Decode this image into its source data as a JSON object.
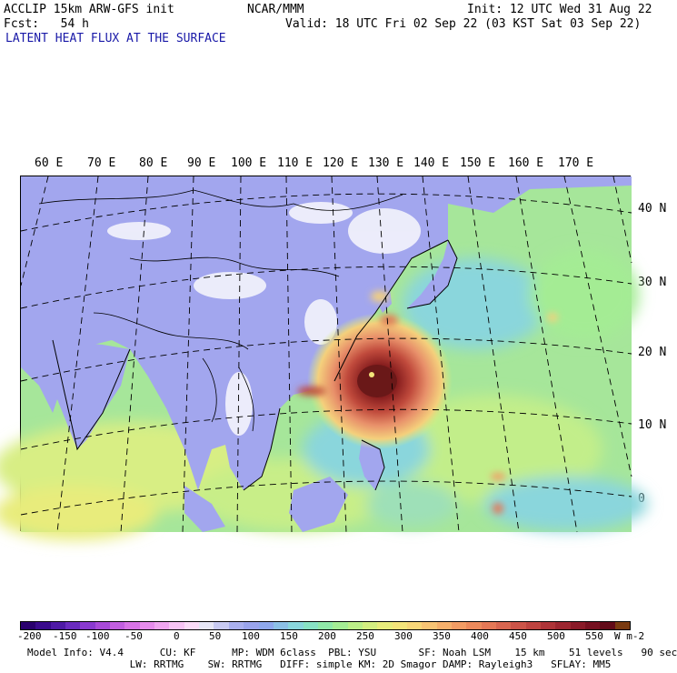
{
  "header": {
    "line1_left": "ACCLIP 15km ARW-GFS init",
    "line1_center": "NCAR/MMM",
    "line1_right": "Init: 12 UTC Wed 31 Aug 22",
    "line2_left": "Fcst:   54 h",
    "line2_right": "Valid: 18 UTC Fri 02 Sep 22 (03 KST Sat 03 Sep 22)",
    "field_title": "LATENT HEAT FLUX AT THE SURFACE",
    "field_title_color": "#1a1aa8"
  },
  "longitude_labels": [
    "60 E",
    "70 E",
    "80 E",
    "90 E",
    "100 E",
    "110 E",
    "120 E",
    "130 E",
    "140 E",
    "150 E",
    "160 E",
    "170 E"
  ],
  "latitude_labels": [
    "40 N",
    "30 N",
    "20 N",
    "10 N",
    "0"
  ],
  "colorbar": {
    "tick_labels": [
      "-200",
      "-150",
      "-100",
      "-50",
      "0",
      "50",
      "100",
      "150",
      "200",
      "250",
      "300",
      "350",
      "400",
      "450",
      "500",
      "550"
    ],
    "units": "W m-2",
    "colors": [
      "#2a006e",
      "#3a0a8c",
      "#4f1aa6",
      "#6a2bbf",
      "#8a3ad0",
      "#a84ad9",
      "#c25fe0",
      "#d874e6",
      "#e68cec",
      "#f0a6f0",
      "#f7c4f4",
      "#fbdcf8",
      "#e6e6f6",
      "#c8caf2",
      "#aab0ee",
      "#9aa4ec",
      "#8fa8ec",
      "#8cc0e6",
      "#8ad6dc",
      "#88e2c4",
      "#90e8a8",
      "#a4ec94",
      "#bcee88",
      "#d4ee80",
      "#e8ec7c",
      "#f4e47a",
      "#f8d678",
      "#f8c474",
      "#f6b06c",
      "#f29c64",
      "#ec8a5c",
      "#e47856",
      "#d86650",
      "#cc5448",
      "#be4440",
      "#ae3438",
      "#9c2630",
      "#8a1a28",
      "#761020",
      "#620a18",
      "#7a3a10"
    ]
  },
  "model_info": {
    "line1": "Model Info: V4.4      CU: KF      MP: WDM 6class  PBL: YSU       SF: Noah LSM    15 km    51 levels   90 sec",
    "line2": "                 LW: RRTMG    SW: RRTMG   DIFF: simple KM: 2D Smagor DAMP: Rayleigh3   SFLAY: MM5"
  }
}
